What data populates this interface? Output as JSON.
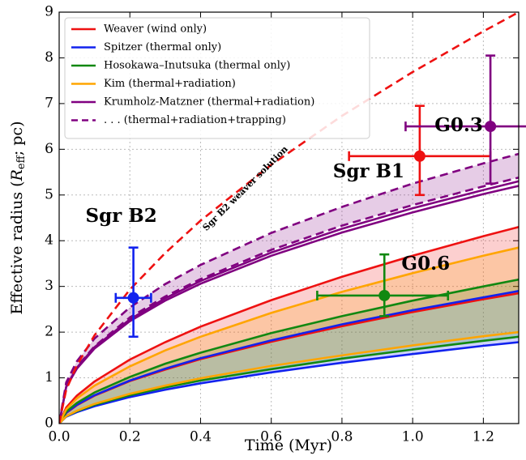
{
  "chart_data": {
    "type": "line",
    "xlabel": "Time (Myr)",
    "ylabel": {
      "before": "Effective radius (",
      "symbol": "R",
      "sub": "eff",
      "after": "; pc)"
    },
    "xlim": [
      0,
      1.3
    ],
    "ylim": [
      0,
      9
    ],
    "xticks": [
      {
        "value": 0,
        "label": "0.0"
      },
      0.2,
      0.4,
      0.6,
      0.8,
      {
        "value": 1,
        "label": "1.0"
      },
      1.2
    ],
    "yticks": [
      0,
      1,
      2,
      3,
      4,
      5,
      6,
      7,
      8,
      9
    ],
    "grid": true,
    "legend": "upper left",
    "x": [
      0,
      0.02,
      0.05,
      0.1,
      0.2,
      0.3,
      0.4,
      0.6,
      0.8,
      1.0,
      1.2,
      1.3
    ],
    "series": [
      {
        "name": "Weaver (wind only)",
        "color": "#ee1111",
        "dashed": false,
        "fill": true,
        "upper": [
          0,
          0.35,
          0.61,
          0.92,
          1.4,
          1.78,
          2.12,
          2.7,
          3.21,
          3.67,
          4.1,
          4.3
        ],
        "lower": [
          0,
          0.23,
          0.4,
          0.61,
          0.93,
          1.18,
          1.41,
          1.79,
          2.13,
          2.44,
          2.72,
          2.85
        ]
      },
      {
        "name": "Spitzer (thermal only)",
        "color": "#1122ee",
        "dashed": false,
        "fill": true,
        "upper": [
          0,
          0.24,
          0.41,
          0.62,
          0.94,
          1.2,
          1.43,
          1.82,
          2.17,
          2.48,
          2.76,
          2.9
        ],
        "lower": [
          0,
          0.15,
          0.25,
          0.38,
          0.58,
          0.74,
          0.88,
          1.12,
          1.33,
          1.52,
          1.7,
          1.78
        ]
      },
      {
        "name": "Hosokawa–Inutsuka (thermal only)",
        "color": "#118811",
        "dashed": false,
        "fill": true,
        "upper": [
          0,
          0.26,
          0.45,
          0.68,
          1.02,
          1.31,
          1.55,
          1.98,
          2.35,
          2.69,
          3.0,
          3.15
        ],
        "lower": [
          0,
          0.16,
          0.27,
          0.41,
          0.62,
          0.79,
          0.94,
          1.19,
          1.42,
          1.62,
          1.81,
          1.9
        ]
      },
      {
        "name": "Kim (thermal+radiation)",
        "color": "#ffa500",
        "dashed": false,
        "fill": true,
        "upper": [
          0,
          0.31,
          0.55,
          0.83,
          1.25,
          1.6,
          1.9,
          2.42,
          2.88,
          3.29,
          3.67,
          3.85
        ],
        "lower": [
          0,
          0.16,
          0.28,
          0.43,
          0.65,
          0.83,
          0.99,
          1.26,
          1.49,
          1.71,
          1.91,
          2.0
        ]
      },
      {
        "name": "Krumholz-Matzner (thermal+radiation)",
        "color": "#800080",
        "dashed": false,
        "fill": false,
        "upper": [
          0,
          0.81,
          1.22,
          1.67,
          2.28,
          2.74,
          3.12,
          3.74,
          4.26,
          4.71,
          5.11,
          5.3
        ],
        "lower": [
          0,
          0.8,
          1.2,
          1.64,
          2.24,
          2.69,
          3.06,
          3.67,
          4.18,
          4.62,
          5.02,
          5.2
        ]
      },
      {
        "name": ". . . (thermal+radiation+trapping)",
        "color": "#800080",
        "dashed": true,
        "fill": true,
        "upper": [
          0,
          0.9,
          1.36,
          1.86,
          2.54,
          3.05,
          3.47,
          4.17,
          4.74,
          5.25,
          5.69,
          5.9
        ],
        "lower": [
          0,
          0.82,
          1.24,
          1.69,
          2.32,
          2.78,
          3.16,
          3.8,
          4.33,
          4.78,
          5.19,
          5.38
        ]
      }
    ],
    "curves": [
      {
        "label": "Sgr B2 weaver solution",
        "color": "#ee1111",
        "dashed": true,
        "values": [
          0,
          0.74,
          1.27,
          1.93,
          2.93,
          3.73,
          4.44,
          5.66,
          6.73,
          7.69,
          8.58,
          9
        ]
      }
    ],
    "points": [
      {
        "label": "Sgr B2",
        "color": "#1122ee",
        "x": 0.21,
        "y": 2.75,
        "xerr_low": 0.05,
        "xerr_high": 0.05,
        "yerr_low": 0.85,
        "yerr_high": 1.1
      },
      {
        "label": "Sgr B1",
        "color": "#ee1111",
        "x": 1.02,
        "y": 5.85,
        "xerr_low": 0.2,
        "xerr_high": 0.2,
        "yerr_low": 0.85,
        "yerr_high": 1.1
      },
      {
        "label": "G0.3",
        "color": "#800080",
        "x": 1.22,
        "y": 6.5,
        "xerr_low": 0.24,
        "xerr_high": 0.24,
        "yerr_low": 1.25,
        "yerr_high": 1.55
      },
      {
        "label": "G0.6",
        "color": "#118811",
        "x": 0.92,
        "y": 2.8,
        "xerr_low": 0.19,
        "xerr_high": 0.18,
        "yerr_low": 0.45,
        "yerr_high": 0.9
      }
    ]
  }
}
